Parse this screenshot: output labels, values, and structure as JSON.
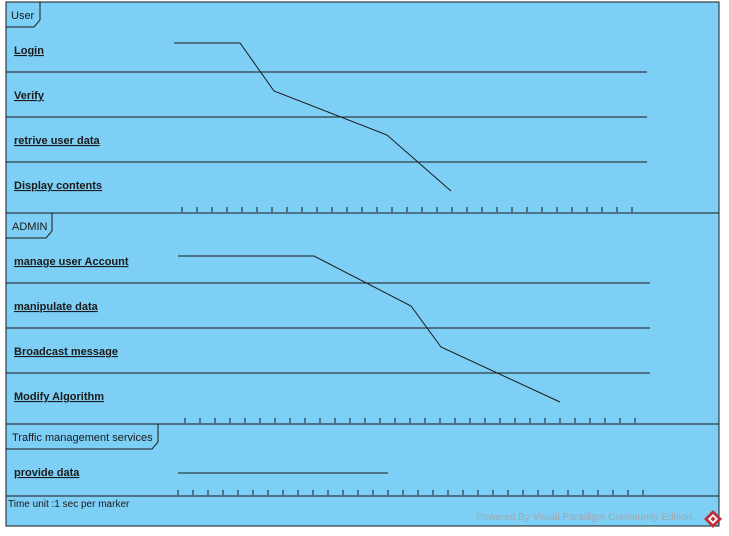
{
  "colors": {
    "frame_fill": "#7ecff5",
    "line": "#1a1a1a",
    "watermark": "#a0a8b0",
    "logo": "#c0303a"
  },
  "frames": [
    {
      "title": "User",
      "lifelines": [
        {
          "label": "Login"
        },
        {
          "label": "Verify"
        },
        {
          "label": "retrive user data"
        },
        {
          "label": "Display contents"
        }
      ]
    },
    {
      "title": "ADMIN",
      "lifelines": [
        {
          "label": "manage user Account"
        },
        {
          "label": "manipulate data"
        },
        {
          "label": "Broadcast message"
        },
        {
          "label": "Modify Algorithm"
        }
      ]
    },
    {
      "title": "Traffic management services",
      "lifelines": [
        {
          "label": "provide data"
        }
      ]
    }
  ],
  "footer": {
    "time_unit": "Time unit :1 sec per marker",
    "watermark": "Powered By Visual Paradigm Community Edition",
    "logo_icon": "visual-paradigm-logo-icon"
  }
}
